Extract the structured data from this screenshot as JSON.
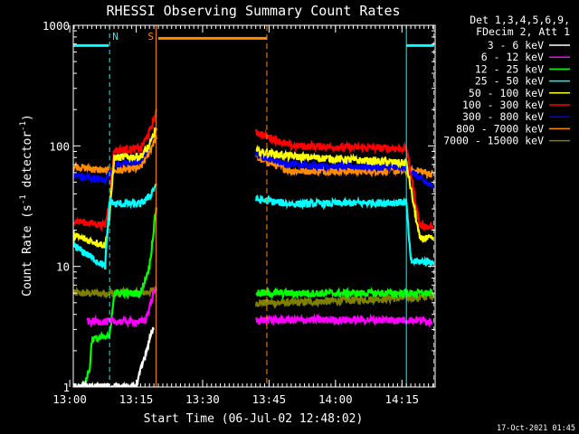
{
  "chart_data": {
    "type": "line",
    "title": "RHESSI Observing Summary Count Rates",
    "xlabel": "Start Time (06-Jul-02 12:48:02)",
    "ylabel_main": "Count Rate (s",
    "ylabel_sup1": "-1",
    "ylabel_mid": " detector",
    "ylabel_sup2": "-1",
    "ylabel_end": ")",
    "yscale": "log",
    "ylim": [
      1,
      1000
    ],
    "xlim_minutes": [
      12.8,
      94.5
    ],
    "x_ticks": [
      {
        "minute": 12,
        "label": "13:00"
      },
      {
        "minute": 27,
        "label": "13:15"
      },
      {
        "minute": 42,
        "label": "13:30"
      },
      {
        "minute": 57,
        "label": "13:45"
      },
      {
        "minute": 72,
        "label": "14:00"
      },
      {
        "minute": 87,
        "label": "14:15"
      }
    ],
    "y_ticks": [
      {
        "value": 1,
        "label": "1"
      },
      {
        "value": 10,
        "label": "10"
      },
      {
        "value": 100,
        "label": "100"
      },
      {
        "value": 1000,
        "label": "1000"
      }
    ],
    "legend_header": [
      "Det 1,3,4,5,6,9,",
      "FDecim 2, Att 1"
    ],
    "series": [
      {
        "name": "3 - 6 keV",
        "color": "#ffffff",
        "pts": [
          [
            12.8,
            1
          ],
          [
            27,
            1
          ],
          [
            30,
            2.5
          ],
          [
            31,
            3.2
          ]
        ]
      },
      {
        "name": "6 - 12 keV",
        "color": "#ff00ff",
        "pts": [
          [
            16,
            3.5
          ],
          [
            29,
            3.5
          ],
          [
            31,
            6
          ],
          [
            31.7,
            7
          ],
          [
            54,
            3.6
          ],
          [
            88,
            3.6
          ],
          [
            91,
            3.6
          ],
          [
            94,
            3.5
          ]
        ]
      },
      {
        "name": "12 - 25 keV",
        "color": "#00ff00",
        "pts": [
          [
            15,
            1
          ],
          [
            16.5,
            1.4
          ],
          [
            17,
            2.5
          ],
          [
            21,
            2.6
          ],
          [
            22,
            6
          ],
          [
            28,
            6
          ],
          [
            30,
            10
          ],
          [
            31.5,
            30
          ],
          [
            54,
            6
          ],
          [
            88,
            6
          ],
          [
            91,
            6
          ],
          [
            94,
            6
          ]
        ]
      },
      {
        "name": "25 - 50 keV",
        "color": "#00ffff",
        "pts": [
          [
            12.8,
            15
          ],
          [
            20,
            10
          ],
          [
            21,
            36
          ],
          [
            22,
            33
          ],
          [
            28,
            33
          ],
          [
            30,
            38
          ],
          [
            31.5,
            48
          ],
          [
            54,
            36
          ],
          [
            62,
            33
          ],
          [
            88,
            34
          ],
          [
            89,
            11
          ],
          [
            91,
            11
          ],
          [
            94,
            11
          ]
        ]
      },
      {
        "name": "50 - 100 keV",
        "color": "#ffff00",
        "pts": [
          [
            12.8,
            18
          ],
          [
            20,
            15
          ],
          [
            21,
            26
          ],
          [
            22,
            80
          ],
          [
            28,
            82
          ],
          [
            30,
            100
          ],
          [
            31.5,
            140
          ],
          [
            54,
            90
          ],
          [
            62,
            82
          ],
          [
            88,
            72
          ],
          [
            91,
            17
          ],
          [
            94,
            17
          ]
        ]
      },
      {
        "name": "100 - 300 keV",
        "color": "#ff0000",
        "pts": [
          [
            12.8,
            24
          ],
          [
            20,
            22
          ],
          [
            21,
            35
          ],
          [
            22,
            92
          ],
          [
            28,
            95
          ],
          [
            30,
            130
          ],
          [
            31.5,
            190
          ],
          [
            54,
            130
          ],
          [
            62,
            100
          ],
          [
            88,
            95
          ],
          [
            91,
            22
          ],
          [
            94,
            21
          ]
        ]
      },
      {
        "name": "300 - 800 keV",
        "color": "#0000ff",
        "pts": [
          [
            12.8,
            57
          ],
          [
            20,
            52
          ],
          [
            22,
            70
          ],
          [
            28,
            75
          ],
          [
            30,
            100
          ],
          [
            31.5,
            145
          ],
          [
            54,
            85
          ],
          [
            62,
            70
          ],
          [
            88,
            66
          ],
          [
            91,
            54
          ],
          [
            94,
            45
          ]
        ]
      },
      {
        "name": "800 - 7000 keV",
        "color": "#ff8c00",
        "pts": [
          [
            12.8,
            68
          ],
          [
            20,
            62
          ],
          [
            22,
            62
          ],
          [
            28,
            66
          ],
          [
            30,
            90
          ],
          [
            31.5,
            120
          ],
          [
            54,
            80
          ],
          [
            62,
            62
          ],
          [
            88,
            62
          ],
          [
            91,
            62
          ],
          [
            94,
            58
          ]
        ]
      },
      {
        "name": "7000 - 15000 keV",
        "color": "#808000",
        "pts": [
          [
            12.8,
            6
          ],
          [
            22,
            6
          ],
          [
            28,
            6
          ],
          [
            30,
            6.2
          ],
          [
            31.5,
            6.4
          ],
          [
            54,
            5
          ],
          [
            62,
            5
          ],
          [
            88,
            5.5
          ],
          [
            91,
            5.5
          ],
          [
            94,
            5.8
          ]
        ]
      }
    ],
    "saa_line": {
      "color": "#00ffff",
      "value": 680,
      "ranges": [
        [
          12.8,
          20.8
        ],
        [
          88,
          94.2
        ]
      ]
    },
    "night_line": {
      "color": "#ff8c00",
      "value": 780,
      "range": [
        32,
        56.5
      ]
    },
    "cyan_verticals": [
      21,
      88,
      94.2
    ],
    "orange_verticals": [
      31.5,
      56.5
    ],
    "markers": [
      {
        "label": "N",
        "minute": 22.3,
        "color": "#00ffff"
      },
      {
        "label": "S",
        "minute": 30.3,
        "color": "#ff8c00"
      }
    ]
  },
  "footer": {
    "timestamp": "17-Oct-2021 01:45"
  }
}
